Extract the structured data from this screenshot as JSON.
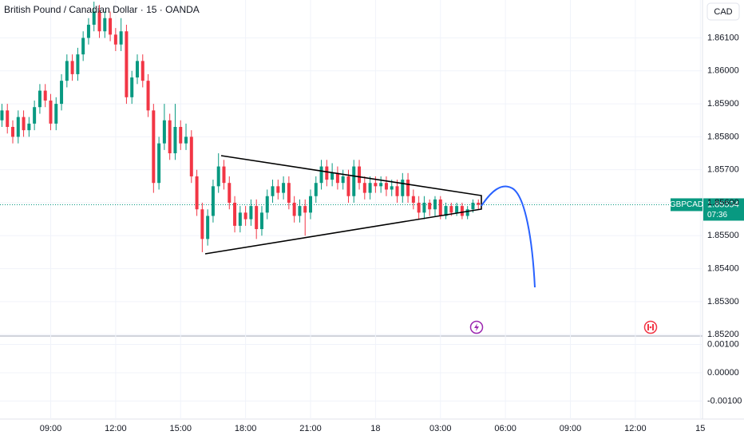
{
  "header": {
    "title": "British Pound / Canadian Dollar · 15 · OANDA",
    "currency": "CAD"
  },
  "chart_data": {
    "type": "candlestick",
    "up_color": "#089981",
    "down_color": "#f23645",
    "grid": true,
    "x": [
      6.75,
      7,
      7.25,
      7.5,
      7.75,
      8,
      8.25,
      8.5,
      8.75,
      9,
      9.25,
      9.5,
      9.75,
      10,
      10.25,
      10.5,
      10.75,
      11,
      11.25,
      11.5,
      11.75,
      12,
      12.25,
      12.5,
      12.75,
      13,
      13.25,
      13.5,
      13.75,
      14,
      14.25,
      14.5,
      14.75,
      15,
      15.25,
      15.5,
      15.75,
      16,
      16.25,
      16.5,
      16.75,
      17,
      17.25,
      17.5,
      17.75,
      18,
      18.25,
      18.5,
      18.75,
      19,
      19.25,
      19.5,
      19.75,
      20,
      20.25,
      20.5,
      20.75,
      21,
      21.25,
      21.5,
      21.75,
      22,
      22.25,
      22.5,
      22.75,
      23,
      23.25,
      23.5,
      23.75,
      24,
      24.25,
      24.5,
      24.75,
      25,
      25.25,
      25.5,
      25.75,
      26,
      26.25,
      26.5,
      26.75,
      27,
      27.25,
      27.5,
      27.75,
      28,
      28.25,
      28.5,
      28.75
    ],
    "open": [
      1.8585,
      1.8588,
      1.8583,
      1.858,
      1.8586,
      1.8582,
      1.8584,
      1.8589,
      1.8594,
      1.8591,
      1.8584,
      1.859,
      1.8597,
      1.8603,
      1.8599,
      1.8605,
      1.861,
      1.8614,
      1.8618,
      1.8612,
      1.8616,
      1.8611,
      1.8608,
      1.8612,
      1.8592,
      1.8598,
      1.8603,
      1.8597,
      1.8588,
      1.8566,
      1.8578,
      1.8585,
      1.8575,
      1.8583,
      1.8578,
      1.858,
      1.8568,
      1.8558,
      1.8549,
      1.8556,
      1.8565,
      1.8571,
      1.8566,
      1.856,
      1.8553,
      1.8557,
      1.8555,
      1.8559,
      1.8552,
      1.8557,
      1.8562,
      1.8565,
      1.8563,
      1.8566,
      1.856,
      1.8556,
      1.8559,
      1.8557,
      1.8562,
      1.8566,
      1.8571,
      1.8567,
      1.8569,
      1.8566,
      1.8568,
      1.8562,
      1.8571,
      1.8566,
      1.8563,
      1.8566,
      1.8565,
      1.8566,
      1.8564,
      1.8565,
      1.8562,
      1.8567,
      1.8562,
      1.856,
      1.8557,
      1.856,
      1.8558,
      1.8561,
      1.8556,
      1.8559,
      1.8557,
      1.8559,
      1.8556,
      1.8558,
      1.856
    ],
    "high": [
      1.859,
      1.859,
      1.8585,
      1.8588,
      1.8588,
      1.8586,
      1.8591,
      1.8596,
      1.8596,
      1.8593,
      1.8592,
      1.8599,
      1.8605,
      1.8605,
      1.8607,
      1.8612,
      1.8616,
      1.8621,
      1.862,
      1.8618,
      1.8618,
      1.8613,
      1.8616,
      1.8614,
      1.86,
      1.8605,
      1.8605,
      1.8599,
      1.859,
      1.858,
      1.859,
      1.8587,
      1.859,
      1.8585,
      1.8584,
      1.8582,
      1.857,
      1.856,
      1.8558,
      1.8567,
      1.8575,
      1.8573,
      1.8568,
      1.8562,
      1.8559,
      1.8559,
      1.8561,
      1.8561,
      1.8559,
      1.8564,
      1.8567,
      1.8567,
      1.8568,
      1.8568,
      1.8562,
      1.8561,
      1.8561,
      1.8564,
      1.8568,
      1.8573,
      1.8573,
      1.8572,
      1.8571,
      1.857,
      1.857,
      1.8573,
      1.8573,
      1.8568,
      1.8568,
      1.8568,
      1.8568,
      1.8568,
      1.8567,
      1.8567,
      1.8569,
      1.8569,
      1.8564,
      1.8562,
      1.8562,
      1.8561,
      1.8562,
      1.8562,
      1.856,
      1.856,
      1.856,
      1.856,
      1.8559,
      1.8561,
      1.8561
    ],
    "low": [
      1.8583,
      1.8581,
      1.8578,
      1.8578,
      1.858,
      1.858,
      1.8582,
      1.8587,
      1.8589,
      1.8582,
      1.8582,
      1.8588,
      1.8595,
      1.8597,
      1.8597,
      1.8603,
      1.8608,
      1.8612,
      1.861,
      1.861,
      1.8609,
      1.8606,
      1.8606,
      1.859,
      1.859,
      1.8596,
      1.8595,
      1.8586,
      1.8563,
      1.8564,
      1.8576,
      1.8573,
      1.8573,
      1.8576,
      1.8576,
      1.8566,
      1.8556,
      1.8545,
      1.8547,
      1.8554,
      1.8563,
      1.8564,
      1.8558,
      1.8551,
      1.8551,
      1.8553,
      1.8553,
      1.8549,
      1.855,
      1.8555,
      1.856,
      1.8561,
      1.8561,
      1.8558,
      1.8554,
      1.8554,
      1.855,
      1.8555,
      1.856,
      1.8564,
      1.8565,
      1.8565,
      1.8564,
      1.8564,
      1.856,
      1.856,
      1.8564,
      1.8561,
      1.8561,
      1.8563,
      1.8563,
      1.8562,
      1.8562,
      1.856,
      1.856,
      1.856,
      1.8558,
      1.8555,
      1.8555,
      1.8556,
      1.8556,
      1.8555,
      1.8555,
      1.8556,
      1.8556,
      1.8555,
      1.8555,
      1.8557,
      1.8558
    ],
    "close": [
      1.8588,
      1.8583,
      1.858,
      1.8586,
      1.8582,
      1.8584,
      1.8589,
      1.8594,
      1.8591,
      1.8584,
      1.859,
      1.8597,
      1.8603,
      1.8599,
      1.8605,
      1.861,
      1.8614,
      1.8618,
      1.8612,
      1.8616,
      1.8611,
      1.8608,
      1.8612,
      1.8592,
      1.8598,
      1.8603,
      1.8597,
      1.8588,
      1.8566,
      1.8578,
      1.8585,
      1.8575,
      1.8583,
      1.8578,
      1.858,
      1.8568,
      1.8558,
      1.8549,
      1.8556,
      1.8565,
      1.8571,
      1.8566,
      1.856,
      1.8553,
      1.8557,
      1.8555,
      1.8559,
      1.8552,
      1.8557,
      1.8562,
      1.8565,
      1.8563,
      1.8566,
      1.856,
      1.8556,
      1.8559,
      1.8557,
      1.8562,
      1.8566,
      1.8571,
      1.8567,
      1.8569,
      1.8566,
      1.8568,
      1.8562,
      1.8571,
      1.8566,
      1.8563,
      1.8566,
      1.8565,
      1.8566,
      1.8564,
      1.8565,
      1.8562,
      1.8567,
      1.8562,
      1.856,
      1.8557,
      1.856,
      1.8558,
      1.8561,
      1.8556,
      1.8559,
      1.8557,
      1.8559,
      1.8556,
      1.8558,
      1.856,
      1.85594
    ],
    "xlim": [
      6.66,
      39.1
    ],
    "xticks": [
      {
        "value": 9,
        "label": "09:00"
      },
      {
        "value": 12,
        "label": "12:00"
      },
      {
        "value": 15,
        "label": "15:00"
      },
      {
        "value": 18,
        "label": "18:00"
      },
      {
        "value": 21,
        "label": "21:00"
      },
      {
        "value": 24,
        "label": "18"
      },
      {
        "value": 27,
        "label": "03:00"
      },
      {
        "value": 30,
        "label": "06:00"
      },
      {
        "value": 33,
        "label": "09:00"
      },
      {
        "value": 36,
        "label": "12:00"
      },
      {
        "value": 39,
        "label": "15"
      }
    ],
    "ylim": [
      1.85198,
      1.86215
    ],
    "yticks": [
      {
        "value": 1.861,
        "label": "1.86100"
      },
      {
        "value": 1.86,
        "label": "1.86000"
      },
      {
        "value": 1.859,
        "label": "1.85900"
      },
      {
        "value": 1.858,
        "label": "1.85800"
      },
      {
        "value": 1.857,
        "label": "1.85700"
      },
      {
        "value": 1.856,
        "label": "1.85600"
      },
      {
        "value": 1.855,
        "label": "1.85500"
      },
      {
        "value": 1.854,
        "label": "1.85400"
      },
      {
        "value": 1.853,
        "label": "1.85300"
      },
      {
        "value": 1.852,
        "label": "1.85200"
      }
    ],
    "symbol": "GBPCAD",
    "last_price": 1.85594,
    "countdown": "07:36"
  },
  "indicator": {
    "ylim": [
      -0.00164,
      0.00127
    ],
    "yticks": [
      {
        "value": 0.001,
        "label": "0.00100"
      },
      {
        "value": 0,
        "label": "0.00000"
      },
      {
        "value": -0.001,
        "label": "-0.00100"
      }
    ]
  }
}
